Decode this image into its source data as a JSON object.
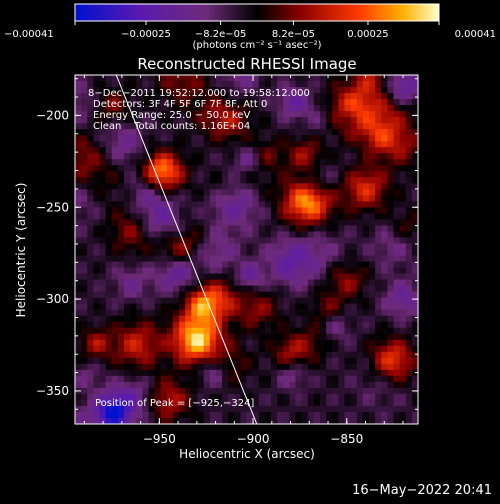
{
  "chart_data": {
    "type": "heatmap",
    "title": "Reconstructed RHESSI Image",
    "xlabel": "Heliocentric X (arcsec)",
    "ylabel": "Heliocentric Y (arcsec)",
    "xlim": [
      -995,
      -812
    ],
    "ylim": [
      -368,
      -178
    ],
    "x_ticks": [
      -950,
      -900,
      -850
    ],
    "x_tick_labels": [
      "−950",
      "−900",
      "−850"
    ],
    "y_ticks": [
      -200,
      -250,
      -300,
      -350
    ],
    "y_tick_labels": [
      "−200",
      "−250",
      "−300",
      "−350"
    ],
    "colorbar": {
      "min": -0.00041,
      "max": 0.00041,
      "ticks": [
        -0.00041,
        -0.00025,
        -8.2e-05,
        8.2e-05,
        0.00025,
        0.00041
      ],
      "tick_labels": [
        "−0.00041",
        "−0.00025",
        "−8.2e−05",
        "8.2e−05",
        "0.00025",
        "0.00041"
      ],
      "unit_label": "(photons cm⁻² s⁻¹ asec⁻²)"
    },
    "info_lines": [
      "8−Dec−2011 19:52:12.000 to 19:58:12.000",
      "Detectors: 3F 4F 5F 6F 7F 8F, Att 0",
      "Energy Range: 25.0 − 50.0 keV",
      "Clean    Total counts: 1.16E+04"
    ],
    "peak_label": "Position of Peak = [−925,−324]",
    "peak": [
      -925,
      -324
    ],
    "bright_sources": [
      {
        "x": -930,
        "y": -322,
        "value": 0.00041,
        "sigma": 9
      },
      {
        "x": -948,
        "y": -232,
        "value": 0.0003,
        "sigma": 8
      },
      {
        "x": -962,
        "y": -262,
        "value": 0.00022,
        "sigma": 9
      },
      {
        "x": -940,
        "y": -270,
        "value": 0.00018,
        "sigma": 7
      },
      {
        "x": -850,
        "y": -200,
        "value": 0.00024,
        "sigma": 8
      },
      {
        "x": -832,
        "y": -212,
        "value": 0.0002,
        "sigma": 7
      },
      {
        "x": -840,
        "y": -240,
        "value": 0.00022,
        "sigma": 8
      },
      {
        "x": -872,
        "y": -222,
        "value": 0.00016,
        "sigma": 7
      },
      {
        "x": -918,
        "y": -300,
        "value": 0.00018,
        "sigma": 8
      },
      {
        "x": -962,
        "y": -325,
        "value": 0.0002,
        "sigma": 9
      },
      {
        "x": -945,
        "y": -355,
        "value": 0.00018,
        "sigma": 8
      },
      {
        "x": -880,
        "y": -330,
        "value": 0.00016,
        "sigma": 7
      },
      {
        "x": -825,
        "y": -335,
        "value": 0.0002,
        "sigma": 8
      },
      {
        "x": -850,
        "y": -290,
        "value": 0.00014,
        "sigma": 7
      },
      {
        "x": -975,
        "y": -195,
        "value": 0.00012,
        "sigma": 7
      }
    ],
    "dark_sources": [
      {
        "x": -910,
        "y": -245,
        "value": -0.0002,
        "sigma": 10
      },
      {
        "x": -975,
        "y": -362,
        "value": -0.00035,
        "sigma": 7
      },
      {
        "x": -820,
        "y": -185,
        "value": -0.0002,
        "sigma": 7
      },
      {
        "x": -880,
        "y": -280,
        "value": -0.00016,
        "sigma": 9
      },
      {
        "x": -970,
        "y": -215,
        "value": -0.00012,
        "sigma": 8
      },
      {
        "x": -820,
        "y": -300,
        "value": -0.00014,
        "sigma": 7
      }
    ],
    "limb_line": [
      [
        -973,
        -178
      ],
      [
        -898,
        -368
      ]
    ]
  },
  "footer": {
    "date": "16−May−2022 20:41"
  }
}
